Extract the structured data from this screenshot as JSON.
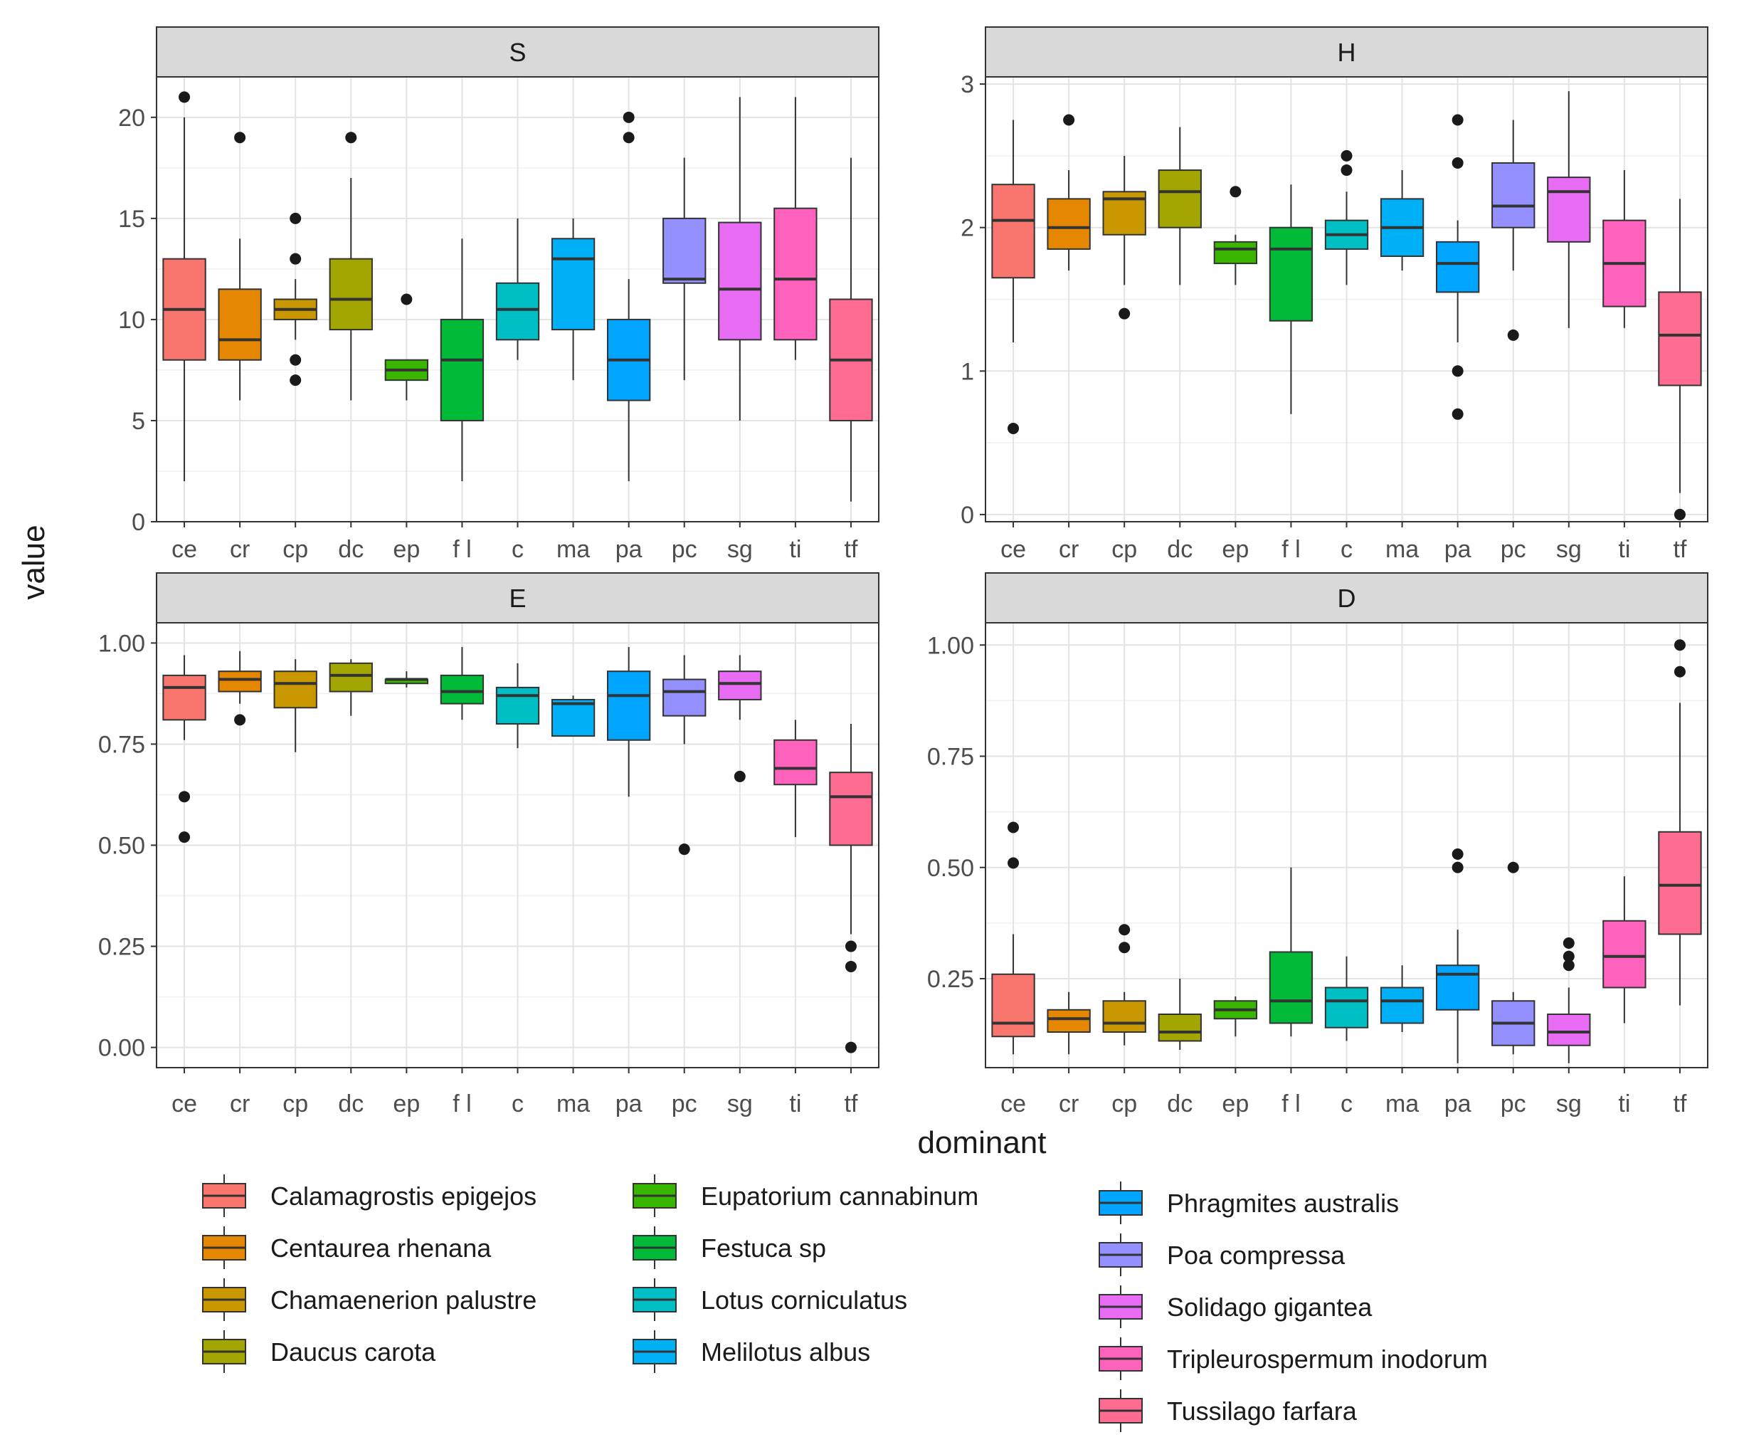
{
  "figure": {
    "xlabel": "dominant",
    "ylabel": "value",
    "category_codes": [
      "ce",
      "cr",
      "cp",
      "dc",
      "ep",
      "f l",
      "c",
      "ma",
      "pa",
      "pc",
      "sg",
      "ti",
      "tf"
    ],
    "colors": [
      "#F8766D",
      "#E58700",
      "#C99800",
      "#A3A500",
      "#39B600",
      "#00BA38",
      "#00BFC4",
      "#00B0F6",
      "#00A5FF",
      "#9590FF",
      "#E76BF3",
      "#FF62BC",
      "#FF6C91"
    ]
  },
  "legend": {
    "items": [
      "Calamagrostis epigejos",
      "Centaurea rhenana",
      "Chamaenerion palustre",
      "Daucus carota",
      "Eupatorium cannabinum",
      "Festuca sp",
      "Lotus corniculatus",
      "Melilotus albus",
      "Phragmites australis",
      "Poa compressa",
      "Solidago gigantea",
      "Tripleurospermum inodorum",
      "Tussilago farfara"
    ]
  },
  "chart_data": [
    {
      "type": "boxplot",
      "title": "S",
      "xlabel": "dominant",
      "ylabel": "value",
      "ylim": [
        0,
        22
      ],
      "yticks": [
        0,
        5,
        10,
        15,
        20
      ],
      "ytick_labels": [
        "0",
        "5",
        "10",
        "15",
        "20"
      ],
      "categories": [
        "ce",
        "cr",
        "cp",
        "dc",
        "ep",
        "f l",
        "c",
        "ma",
        "pa",
        "pc",
        "sg",
        "ti",
        "tf"
      ],
      "boxes": [
        {
          "min": 2,
          "q1": 8,
          "median": 10.5,
          "q3": 13,
          "max": 20,
          "outliers": [
            21
          ]
        },
        {
          "min": 6,
          "q1": 8,
          "median": 9,
          "q3": 11.5,
          "max": 14,
          "outliers": [
            19
          ]
        },
        {
          "min": 9,
          "q1": 10,
          "median": 10.5,
          "q3": 11,
          "max": 12,
          "outliers": [
            15,
            13,
            8,
            7
          ]
        },
        {
          "min": 6,
          "q1": 9.5,
          "median": 11,
          "q3": 13,
          "max": 17,
          "outliers": [
            19
          ]
        },
        {
          "min": 6,
          "q1": 7,
          "median": 7.5,
          "q3": 8,
          "max": 8,
          "outliers": [
            11
          ]
        },
        {
          "min": 2,
          "q1": 5,
          "median": 8,
          "q3": 10,
          "max": 14,
          "outliers": []
        },
        {
          "min": 8,
          "q1": 9,
          "median": 10.5,
          "q3": 11.8,
          "max": 15,
          "outliers": []
        },
        {
          "min": 7,
          "q1": 9.5,
          "median": 13,
          "q3": 14,
          "max": 15,
          "outliers": []
        },
        {
          "min": 2,
          "q1": 6,
          "median": 8,
          "q3": 10,
          "max": 12,
          "outliers": [
            19,
            20
          ]
        },
        {
          "min": 7,
          "q1": 11.8,
          "median": 12,
          "q3": 15,
          "max": 18,
          "outliers": []
        },
        {
          "min": 5,
          "q1": 9,
          "median": 11.5,
          "q3": 14.8,
          "max": 21,
          "outliers": []
        },
        {
          "min": 8,
          "q1": 9,
          "median": 12,
          "q3": 15.5,
          "max": 21,
          "outliers": []
        },
        {
          "min": 1,
          "q1": 5,
          "median": 8,
          "q3": 11,
          "max": 18,
          "outliers": []
        }
      ]
    },
    {
      "type": "boxplot",
      "title": "H",
      "xlabel": "dominant",
      "ylabel": "value",
      "ylim": [
        -0.05,
        3.05
      ],
      "yticks": [
        0,
        1,
        2,
        3
      ],
      "ytick_labels": [
        "0",
        "1",
        "2",
        "3"
      ],
      "categories": [
        "ce",
        "cr",
        "cp",
        "dc",
        "ep",
        "f l",
        "c",
        "ma",
        "pa",
        "pc",
        "sg",
        "ti",
        "tf"
      ],
      "boxes": [
        {
          "min": 1.2,
          "q1": 1.65,
          "median": 2.05,
          "q3": 2.3,
          "max": 2.75,
          "outliers": [
            0.6
          ]
        },
        {
          "min": 1.7,
          "q1": 1.85,
          "median": 2.0,
          "q3": 2.2,
          "max": 2.4,
          "outliers": [
            2.75
          ]
        },
        {
          "min": 1.6,
          "q1": 1.95,
          "median": 2.2,
          "q3": 2.25,
          "max": 2.5,
          "outliers": [
            1.4
          ]
        },
        {
          "min": 1.6,
          "q1": 2.0,
          "median": 2.25,
          "q3": 2.4,
          "max": 2.7,
          "outliers": []
        },
        {
          "min": 1.6,
          "q1": 1.75,
          "median": 1.85,
          "q3": 1.9,
          "max": 1.95,
          "outliers": [
            2.25
          ]
        },
        {
          "min": 0.7,
          "q1": 1.35,
          "median": 1.85,
          "q3": 2.0,
          "max": 2.3,
          "outliers": []
        },
        {
          "min": 1.6,
          "q1": 1.85,
          "median": 1.95,
          "q3": 2.05,
          "max": 2.25,
          "outliers": [
            2.4,
            2.5
          ]
        },
        {
          "min": 1.7,
          "q1": 1.8,
          "median": 2.0,
          "q3": 2.2,
          "max": 2.4,
          "outliers": []
        },
        {
          "min": 1.2,
          "q1": 1.55,
          "median": 1.75,
          "q3": 1.9,
          "max": 2.05,
          "outliers": [
            2.45,
            2.75,
            1.0,
            0.7
          ]
        },
        {
          "min": 1.7,
          "q1": 2.0,
          "median": 2.15,
          "q3": 2.45,
          "max": 2.75,
          "outliers": [
            1.25
          ]
        },
        {
          "min": 1.3,
          "q1": 1.9,
          "median": 2.25,
          "q3": 2.35,
          "max": 2.95,
          "outliers": []
        },
        {
          "min": 1.3,
          "q1": 1.45,
          "median": 1.75,
          "q3": 2.05,
          "max": 2.4,
          "outliers": []
        },
        {
          "min": 0.15,
          "q1": 0.9,
          "median": 1.25,
          "q3": 1.55,
          "max": 2.2,
          "outliers": [
            0.0
          ]
        }
      ]
    },
    {
      "type": "boxplot",
      "title": "E",
      "xlabel": "dominant",
      "ylabel": "value",
      "ylim": [
        -0.05,
        1.05
      ],
      "yticks": [
        0,
        0.25,
        0.5,
        0.75,
        1.0
      ],
      "ytick_labels": [
        "0.00",
        "0.25",
        "0.50",
        "0.75",
        "1.00"
      ],
      "categories": [
        "ce",
        "cr",
        "cp",
        "dc",
        "ep",
        "f l",
        "c",
        "ma",
        "pa",
        "pc",
        "sg",
        "ti",
        "tf"
      ],
      "boxes": [
        {
          "min": 0.76,
          "q1": 0.81,
          "median": 0.89,
          "q3": 0.92,
          "max": 0.97,
          "outliers": [
            0.62,
            0.52
          ]
        },
        {
          "min": 0.85,
          "q1": 0.88,
          "median": 0.91,
          "q3": 0.93,
          "max": 0.98,
          "outliers": [
            0.81
          ]
        },
        {
          "min": 0.73,
          "q1": 0.84,
          "median": 0.9,
          "q3": 0.93,
          "max": 0.96,
          "outliers": []
        },
        {
          "min": 0.82,
          "q1": 0.88,
          "median": 0.92,
          "q3": 0.95,
          "max": 0.96,
          "outliers": []
        },
        {
          "min": 0.89,
          "q1": 0.9,
          "median": 0.91,
          "q3": 0.91,
          "max": 0.93,
          "outliers": []
        },
        {
          "min": 0.81,
          "q1": 0.85,
          "median": 0.88,
          "q3": 0.92,
          "max": 0.99,
          "outliers": []
        },
        {
          "min": 0.74,
          "q1": 0.8,
          "median": 0.87,
          "q3": 0.89,
          "max": 0.95,
          "outliers": []
        },
        {
          "min": 0.77,
          "q1": 0.77,
          "median": 0.85,
          "q3": 0.86,
          "max": 0.87,
          "outliers": []
        },
        {
          "min": 0.62,
          "q1": 0.76,
          "median": 0.87,
          "q3": 0.93,
          "max": 0.99,
          "outliers": []
        },
        {
          "min": 0.75,
          "q1": 0.82,
          "median": 0.88,
          "q3": 0.91,
          "max": 0.97,
          "outliers": [
            0.49
          ]
        },
        {
          "min": 0.81,
          "q1": 0.86,
          "median": 0.9,
          "q3": 0.93,
          "max": 0.97,
          "outliers": [
            0.67
          ]
        },
        {
          "min": 0.52,
          "q1": 0.65,
          "median": 0.69,
          "q3": 0.76,
          "max": 0.81,
          "outliers": []
        },
        {
          "min": 0.28,
          "q1": 0.5,
          "median": 0.62,
          "q3": 0.68,
          "max": 0.8,
          "outliers": [
            0.25,
            0.2,
            0.0
          ]
        }
      ]
    },
    {
      "type": "boxplot",
      "title": "D",
      "xlabel": "dominant",
      "ylabel": "value",
      "ylim": [
        0.05,
        1.05
      ],
      "yticks": [
        0.25,
        0.5,
        0.75,
        1.0
      ],
      "ytick_labels": [
        "0.25",
        "0.50",
        "0.75",
        "1.00"
      ],
      "categories": [
        "ce",
        "cr",
        "cp",
        "dc",
        "ep",
        "f l",
        "c",
        "ma",
        "pa",
        "pc",
        "sg",
        "ti",
        "tf"
      ],
      "boxes": [
        {
          "min": 0.08,
          "q1": 0.12,
          "median": 0.15,
          "q3": 0.26,
          "max": 0.35,
          "outliers": [
            0.59,
            0.51
          ]
        },
        {
          "min": 0.08,
          "q1": 0.13,
          "median": 0.16,
          "q3": 0.18,
          "max": 0.22,
          "outliers": []
        },
        {
          "min": 0.1,
          "q1": 0.13,
          "median": 0.15,
          "q3": 0.2,
          "max": 0.22,
          "outliers": [
            0.36,
            0.32
          ]
        },
        {
          "min": 0.09,
          "q1": 0.11,
          "median": 0.13,
          "q3": 0.17,
          "max": 0.25,
          "outliers": []
        },
        {
          "min": 0.12,
          "q1": 0.16,
          "median": 0.18,
          "q3": 0.2,
          "max": 0.21,
          "outliers": []
        },
        {
          "min": 0.12,
          "q1": 0.15,
          "median": 0.2,
          "q3": 0.31,
          "max": 0.5,
          "outliers": []
        },
        {
          "min": 0.11,
          "q1": 0.14,
          "median": 0.2,
          "q3": 0.23,
          "max": 0.3,
          "outliers": []
        },
        {
          "min": 0.13,
          "q1": 0.15,
          "median": 0.2,
          "q3": 0.23,
          "max": 0.28,
          "outliers": []
        },
        {
          "min": 0.06,
          "q1": 0.18,
          "median": 0.26,
          "q3": 0.28,
          "max": 0.36,
          "outliers": [
            0.53,
            0.5
          ]
        },
        {
          "min": 0.08,
          "q1": 0.1,
          "median": 0.15,
          "q3": 0.2,
          "max": 0.22,
          "outliers": [
            0.5
          ]
        },
        {
          "min": 0.06,
          "q1": 0.1,
          "median": 0.13,
          "q3": 0.17,
          "max": 0.23,
          "outliers": [
            0.33,
            0.3,
            0.28
          ]
        },
        {
          "min": 0.15,
          "q1": 0.23,
          "median": 0.3,
          "q3": 0.38,
          "max": 0.48,
          "outliers": []
        },
        {
          "min": 0.19,
          "q1": 0.35,
          "median": 0.46,
          "q3": 0.58,
          "max": 0.87,
          "outliers": [
            1.0,
            0.94
          ]
        }
      ]
    }
  ]
}
